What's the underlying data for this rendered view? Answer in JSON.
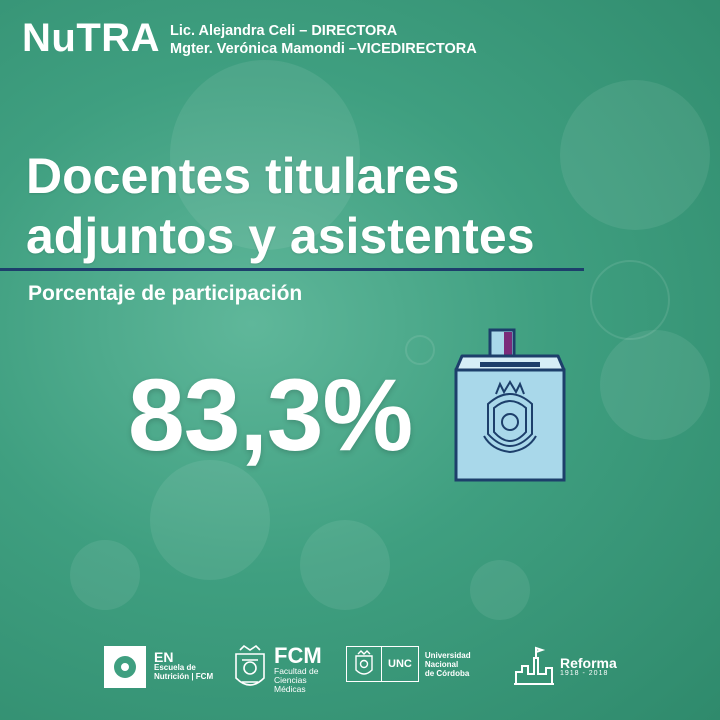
{
  "colors": {
    "background": "#3f9f80",
    "accent_rule": "#1d3f6b",
    "ballot_fill": "#a9d8ea",
    "ballot_stroke": "#1d3f6b",
    "ballot_slip": "#7b2b7a"
  },
  "header": {
    "brand": "NuTRA",
    "staff": [
      "Lic. Alejandra Celi – DIRECTORA",
      "Mgter. Verónica Mamondi –VICEDIRECTORA"
    ]
  },
  "main": {
    "title_lines": [
      "Docentes titulares",
      "adjuntos y asistentes"
    ],
    "subtitle": "Porcentaje de participación",
    "percent": "83,3%",
    "icon": "ballot-box-icon"
  },
  "footer": {
    "en": {
      "code": "EN",
      "line1": "Escuela de",
      "line2": "Nutrición | FCM"
    },
    "fcm": {
      "code": "FCM",
      "line1": "Facultad de",
      "line2": "Ciencias",
      "line3": "Médicas"
    },
    "unc": {
      "code": "UNC",
      "line1": "Universidad",
      "line2": "Nacional",
      "line3": "de Córdoba"
    },
    "reforma": {
      "word": "Reforma",
      "years": "1918 - 2018"
    }
  }
}
